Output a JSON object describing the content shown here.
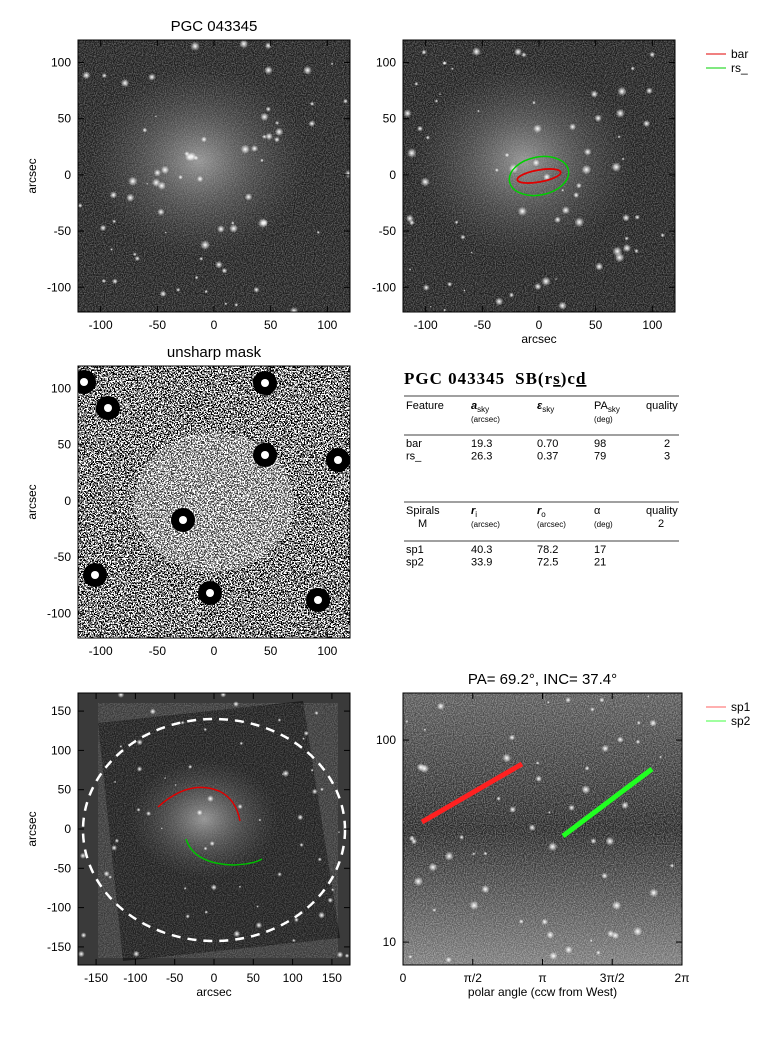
{
  "chart_data": [
    {
      "type": "image",
      "title": "PGC 043345",
      "ylabel": "arcsec",
      "xlim": [
        -120,
        120
      ],
      "ylim": [
        -122,
        120
      ],
      "xticks": [
        -100,
        -50,
        0,
        50,
        100
      ],
      "yticks": [
        -100,
        -50,
        0,
        50,
        100
      ]
    },
    {
      "type": "image",
      "xlabel": "arcsec",
      "xlim": [
        -120,
        120
      ],
      "ylim": [
        -122,
        120
      ],
      "xticks": [
        -100,
        -50,
        0,
        50,
        100
      ],
      "yticks": [
        -100,
        -50,
        0,
        50,
        100
      ],
      "legend": [
        {
          "name": "bar",
          "color": "#e00000"
        },
        {
          "name": "rs_",
          "color": "#00d000"
        }
      ]
    },
    {
      "type": "image",
      "title": "unsharp mask",
      "ylabel": "arcsec",
      "xlim": [
        -120,
        120
      ],
      "ylim": [
        -122,
        120
      ],
      "xticks": [
        -100,
        -50,
        0,
        50,
        100
      ],
      "yticks": [
        -100,
        -50,
        0,
        50,
        100
      ]
    },
    {
      "type": "image",
      "xlabel": "arcsec",
      "ylabel": "arcsec",
      "xlim": [
        -173,
        173
      ],
      "ylim": [
        -173,
        173
      ],
      "xticks": [
        -150,
        -100,
        -50,
        0,
        50,
        100,
        150
      ],
      "yticks": [
        -150,
        -100,
        -50,
        0,
        50,
        100,
        150
      ]
    },
    {
      "type": "image",
      "title": "PA= 69.2°, INC= 37.4°",
      "xlabel": "polar angle (ccw from West)",
      "yscale": "log",
      "xlim": [
        0,
        6.2832
      ],
      "ylim": [
        7.7,
        171
      ],
      "xticks": [
        0,
        {
          "value": 1.5708,
          "label": "π/2"
        },
        {
          "value": 3.1416,
          "label": "π"
        },
        {
          "value": 4.7124,
          "label": "3π/2"
        },
        {
          "value": 6.2832,
          "label": "2π"
        }
      ],
      "yticks": [
        10,
        100
      ],
      "legend": [
        {
          "name": "sp1",
          "color": "#ff6060"
        },
        {
          "name": "sp2",
          "color": "#40ff40"
        }
      ]
    }
  ],
  "table": {
    "title": [
      "PGC 043345",
      "SB(r",
      "s",
      ")c",
      "d"
    ],
    "bars": {
      "header": [
        {
          "name": "Feature"
        },
        {
          "name": "a",
          "sub": "sky",
          "unit": "(arcsec)"
        },
        {
          "name": "ε",
          "sub": "sky"
        },
        {
          "name": "PA",
          "sub": "sky",
          "unit": "(deg)"
        },
        {
          "name": "quality"
        }
      ],
      "rows": [
        [
          "bar",
          "19.3",
          "0.70",
          "98",
          "2"
        ],
        [
          "rs_",
          "26.3",
          "0.37",
          "79",
          "3"
        ]
      ]
    },
    "spirals": {
      "header": [
        {
          "name": "Spirals",
          "unit": "M"
        },
        {
          "name": "r",
          "sub": "i",
          "unit": "(arcsec)"
        },
        {
          "name": "r",
          "sub": "o",
          "unit": "(arcsec)"
        },
        {
          "name": "α",
          "unit": "(deg)"
        },
        {
          "name": "quality",
          "unit": "2"
        }
      ],
      "rows": [
        [
          "sp1",
          "40.3",
          "78.2",
          "17"
        ],
        [
          "sp2",
          "33.9",
          "72.5",
          "21"
        ]
      ]
    }
  }
}
